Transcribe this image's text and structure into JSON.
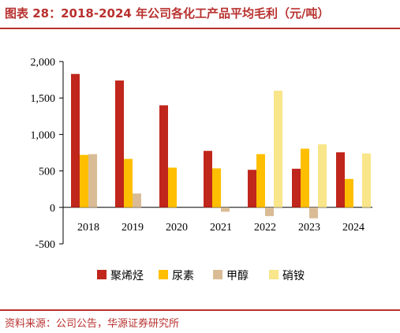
{
  "header": {
    "title": "图表 28：2018-2024 年公司各化工产品平均毛利（元/吨）"
  },
  "footer": {
    "source": "资料来源：公司公告，华源证券研究所"
  },
  "chart_data": {
    "type": "bar",
    "categories": [
      "2018",
      "2019",
      "2020",
      "2021",
      "2022",
      "2023",
      "2024"
    ],
    "series": [
      {
        "name": "聚烯烃",
        "color": "#c0261c",
        "values": [
          1830,
          1740,
          1400,
          775,
          515,
          530,
          755
        ]
      },
      {
        "name": "尿素",
        "color": "#ffbf00",
        "values": [
          720,
          665,
          545,
          535,
          730,
          805,
          390
        ]
      },
      {
        "name": "甲醇",
        "color": "#d9bc95",
        "values": [
          730,
          190,
          null,
          -60,
          -120,
          -150,
          null
        ]
      },
      {
        "name": "硝铵",
        "color": "#f9e58a",
        "values": [
          null,
          null,
          null,
          null,
          1600,
          865,
          740
        ]
      }
    ],
    "ylim": [
      -500,
      2000
    ],
    "yticks": [
      2000,
      1500,
      1000,
      500,
      0,
      -500
    ],
    "ytick_labels": [
      "2,000",
      "1,500",
      "1,000",
      "500",
      "0",
      "-500"
    ],
    "legend_position": "bottom",
    "grid": false,
    "xlabel": "",
    "ylabel": ""
  }
}
